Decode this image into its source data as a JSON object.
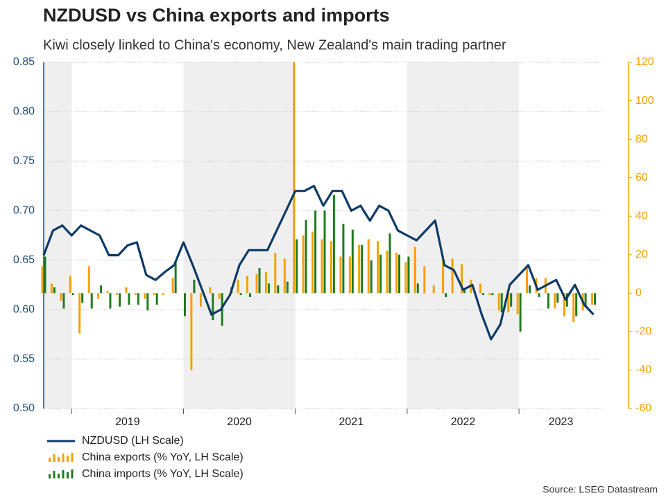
{
  "chart_data": {
    "type": "combo",
    "title": "NZDUSD vs China exports and imports",
    "subtitle": "Kiwi closely linked to China's economy, New Zealand's main trading partner",
    "source": "Source: LSEG Datastream",
    "x": [
      2018.75,
      2018.833,
      2018.917,
      2019,
      2019.083,
      2019.167,
      2019.25,
      2019.333,
      2019.417,
      2019.5,
      2019.583,
      2019.667,
      2019.75,
      2019.833,
      2019.917,
      2020,
      2020.083,
      2020.167,
      2020.25,
      2020.333,
      2020.417,
      2020.5,
      2020.583,
      2020.667,
      2020.75,
      2020.833,
      2020.917,
      2021,
      2021.083,
      2021.167,
      2021.25,
      2021.333,
      2021.417,
      2021.5,
      2021.583,
      2021.667,
      2021.75,
      2021.833,
      2021.917,
      2022,
      2022.083,
      2022.167,
      2022.25,
      2022.333,
      2022.417,
      2022.5,
      2022.583,
      2022.667,
      2022.75,
      2022.833,
      2022.917,
      2023,
      2023.083,
      2023.167,
      2023.25,
      2023.333,
      2023.417,
      2023.5,
      2023.583,
      2023.667
    ],
    "xlim": [
      2018.75,
      2023.75
    ],
    "xticks": [
      {
        "value": 2019,
        "label": "2019"
      },
      {
        "value": 2020,
        "label": "2020"
      },
      {
        "value": 2021,
        "label": "2021"
      },
      {
        "value": 2022,
        "label": "2022"
      },
      {
        "value": 2023,
        "label": "2023"
      }
    ],
    "ylim": [
      0.5,
      0.85
    ],
    "yticks": [
      {
        "value": 0.5,
        "label": "0.50"
      },
      0.55,
      {
        "value": 0.6,
        "label": "0.60"
      },
      0.65,
      {
        "value": 0.7,
        "label": "0.70"
      },
      0.75,
      {
        "value": 0.8,
        "label": "0.80"
      },
      0.85
    ],
    "y2lim": [
      -60,
      120
    ],
    "y2ticks": [
      -60,
      -40,
      -20,
      0,
      20,
      40,
      60,
      80,
      100,
      120
    ],
    "grid": true,
    "legend": "bottom-left",
    "series": [
      {
        "name": "NZDUSD (LH Scale)",
        "type": "line",
        "color": "#0d3a66",
        "values": [
          0.655,
          0.68,
          0.685,
          0.675,
          0.685,
          0.68,
          0.675,
          0.655,
          0.655,
          0.665,
          0.668,
          0.635,
          0.63,
          0.638,
          0.645,
          0.668,
          0.645,
          0.62,
          0.595,
          0.6,
          0.615,
          0.645,
          0.66,
          0.66,
          0.66,
          0.68,
          0.7,
          0.72,
          0.72,
          0.725,
          0.705,
          0.72,
          0.72,
          0.7,
          0.705,
          0.69,
          0.705,
          0.7,
          0.68,
          0.675,
          0.67,
          0.68,
          0.69,
          0.645,
          0.64,
          0.62,
          0.625,
          0.595,
          0.57,
          0.585,
          0.625,
          0.635,
          0.645,
          0.62,
          0.625,
          0.63,
          0.61,
          0.625,
          0.605,
          0.595
        ]
      },
      {
        "name": "China exports (% YoY, LH Scale)",
        "type": "bar",
        "axis": "y2",
        "color": "#f5a000",
        "values": [
          14,
          5,
          -4,
          9,
          -21,
          14,
          -3,
          1,
          -1,
          3,
          -1,
          -3,
          -1,
          -1,
          8,
          0,
          -40,
          -7,
          3,
          -3,
          0,
          7,
          9,
          10,
          11,
          21,
          18,
          120,
          30,
          32,
          28,
          27,
          19,
          19,
          25,
          28,
          27,
          22,
          21,
          16,
          24,
          14,
          4,
          17,
          18,
          15,
          7,
          5,
          -1,
          -9,
          -10,
          -11,
          14,
          8,
          8,
          -8,
          -12,
          -15,
          -9,
          -6
        ]
      },
      {
        "name": "China imports (% YoY, LH Scale)",
        "type": "bar",
        "axis": "y2",
        "color": "#1e7b1e",
        "values": [
          19,
          3,
          -8,
          -1,
          -5,
          -8,
          4,
          -8,
          -7,
          -6,
          -6,
          -9,
          -6,
          0,
          16,
          -12,
          7,
          -1,
          -14,
          -17,
          3,
          -1,
          -2,
          13,
          5,
          4,
          6,
          28,
          38,
          43,
          43,
          51,
          36,
          33,
          25,
          17,
          20,
          31,
          20,
          19,
          5,
          0,
          0,
          -2,
          0,
          2,
          0,
          -1,
          -1,
          -10,
          -7,
          -20,
          4,
          -2,
          -8,
          -5,
          -7,
          -12,
          -7,
          -6
        ]
      }
    ]
  }
}
